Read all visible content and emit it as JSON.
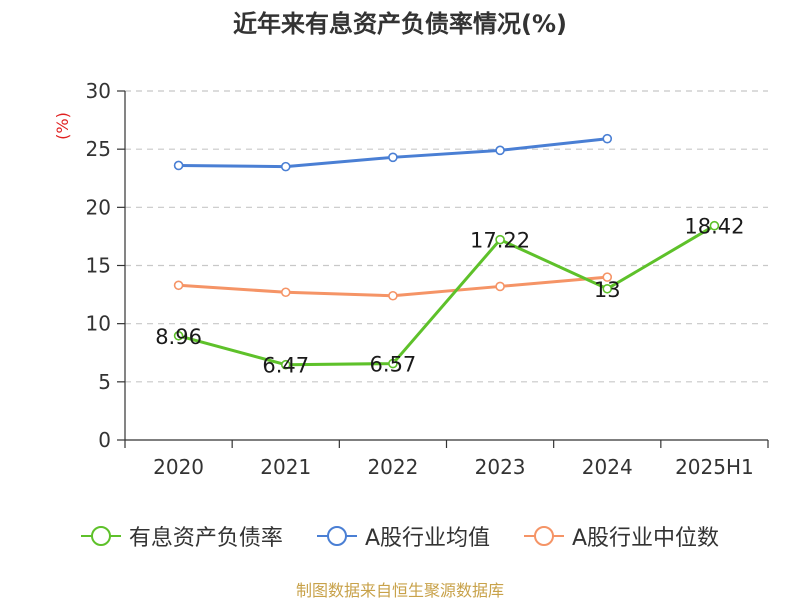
{
  "title": "近年来有息资产负债率情况(%)",
  "y_unit": "(%)",
  "source": "制图数据来自恒生聚源数据库",
  "chart_data": {
    "type": "line",
    "categories": [
      "2020",
      "2021",
      "2022",
      "2023",
      "2024",
      "2025H1"
    ],
    "ylim": [
      0,
      30
    ],
    "yticks": [
      0,
      5,
      10,
      15,
      20,
      25,
      30
    ],
    "grid": true,
    "legend_position": "bottom",
    "series": [
      {
        "name": "有息资产负债率",
        "color": "#5ec12a",
        "values": [
          8.96,
          6.47,
          6.57,
          17.22,
          13,
          18.42
        ],
        "labels": [
          "8.96",
          "6.47",
          "6.57",
          "17.22",
          "13",
          "18.42"
        ]
      },
      {
        "name": "A股行业均值",
        "color": "#4a7fd4",
        "values": [
          23.6,
          23.5,
          24.3,
          24.9,
          25.9,
          null
        ]
      },
      {
        "name": "A股行业中位数",
        "color": "#f59466",
        "values": [
          13.3,
          12.7,
          12.4,
          13.2,
          14.0,
          null
        ]
      }
    ]
  }
}
